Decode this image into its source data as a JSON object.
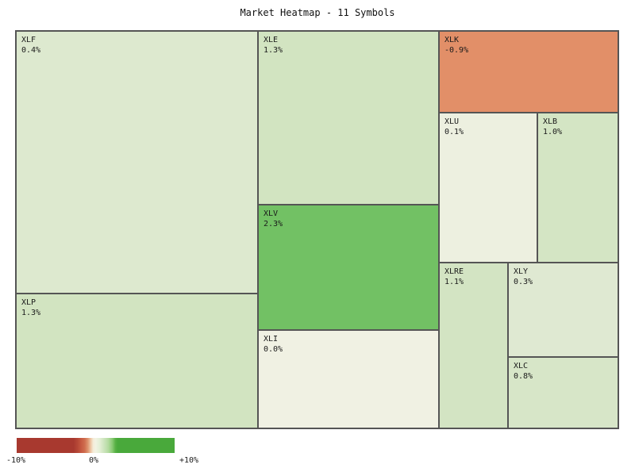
{
  "title": "Market Heatmap - 11 Symbols",
  "tiles": [
    {
      "symbol": "XLF",
      "pct": "0.4%",
      "color": "#dde9cf"
    },
    {
      "symbol": "XLP",
      "pct": "1.3%",
      "color": "#d2e4c1"
    },
    {
      "symbol": "XLE",
      "pct": "1.3%",
      "color": "#d2e4c1"
    },
    {
      "symbol": "XLV",
      "pct": "2.3%",
      "color": "#72c164"
    },
    {
      "symbol": "XLI",
      "pct": "0.0%",
      "color": "#f0f1e3"
    },
    {
      "symbol": "XLK",
      "pct": "-0.9%",
      "color": "#e28f68"
    },
    {
      "symbol": "XLU",
      "pct": "0.1%",
      "color": "#edf0e0"
    },
    {
      "symbol": "XLB",
      "pct": "1.0%",
      "color": "#d4e5c4"
    },
    {
      "symbol": "XLRE",
      "pct": "1.1%",
      "color": "#d3e4c3"
    },
    {
      "symbol": "XLY",
      "pct": "0.3%",
      "color": "#dfe9d2"
    },
    {
      "symbol": "XLC",
      "pct": "0.8%",
      "color": "#d7e6c8"
    }
  ],
  "legend": {
    "min_label": "-10%",
    "mid_label": "0%",
    "max_label": "+10%",
    "gradient_stops": [
      [
        "#a8392f",
        0
      ],
      [
        "#a8392f",
        36
      ],
      [
        "#b84a38",
        39
      ],
      [
        "#c75b42",
        41
      ],
      [
        "#cf6c4e",
        43
      ],
      [
        "#dd916c",
        45
      ],
      [
        "#eec8a8",
        47
      ],
      [
        "#f5ecd9",
        48.5
      ],
      [
        "#f2f2e2",
        50
      ],
      [
        "#e4efd7",
        52.5
      ],
      [
        "#cfe5bf",
        55
      ],
      [
        "#b4dba1",
        58
      ],
      [
        "#8aca74",
        60.5
      ],
      [
        "#58b145",
        62.5
      ],
      [
        "#49a93b",
        64
      ],
      [
        "#49a93b",
        100
      ]
    ]
  },
  "colors": {
    "tile_border": "#555555",
    "background": "#ffffff",
    "text": "#1a1a1a"
  },
  "chart_data": {
    "type": "heatmap",
    "layout": "treemap",
    "title": "Market Heatmap - 11 Symbols",
    "symbol_count": 11,
    "symbols": [
      "XLF",
      "XLP",
      "XLE",
      "XLV",
      "XLI",
      "XLK",
      "XLU",
      "XLB",
      "XLRE",
      "XLY",
      "XLC"
    ],
    "change_pct": [
      0.4,
      1.3,
      1.3,
      2.3,
      0.0,
      -0.9,
      0.1,
      1.0,
      1.1,
      0.3,
      0.8
    ],
    "colorbar": {
      "min": -10,
      "mid": 0,
      "max": 10,
      "min_label": "-10%",
      "mid_label": "0%",
      "max_label": "+10%",
      "min_color": "#a8392f",
      "mid_color": "#f2f2e2",
      "max_color": "#49a93b",
      "position": "bottom-left"
    },
    "grid": false,
    "legend_position": "bottom-left"
  }
}
